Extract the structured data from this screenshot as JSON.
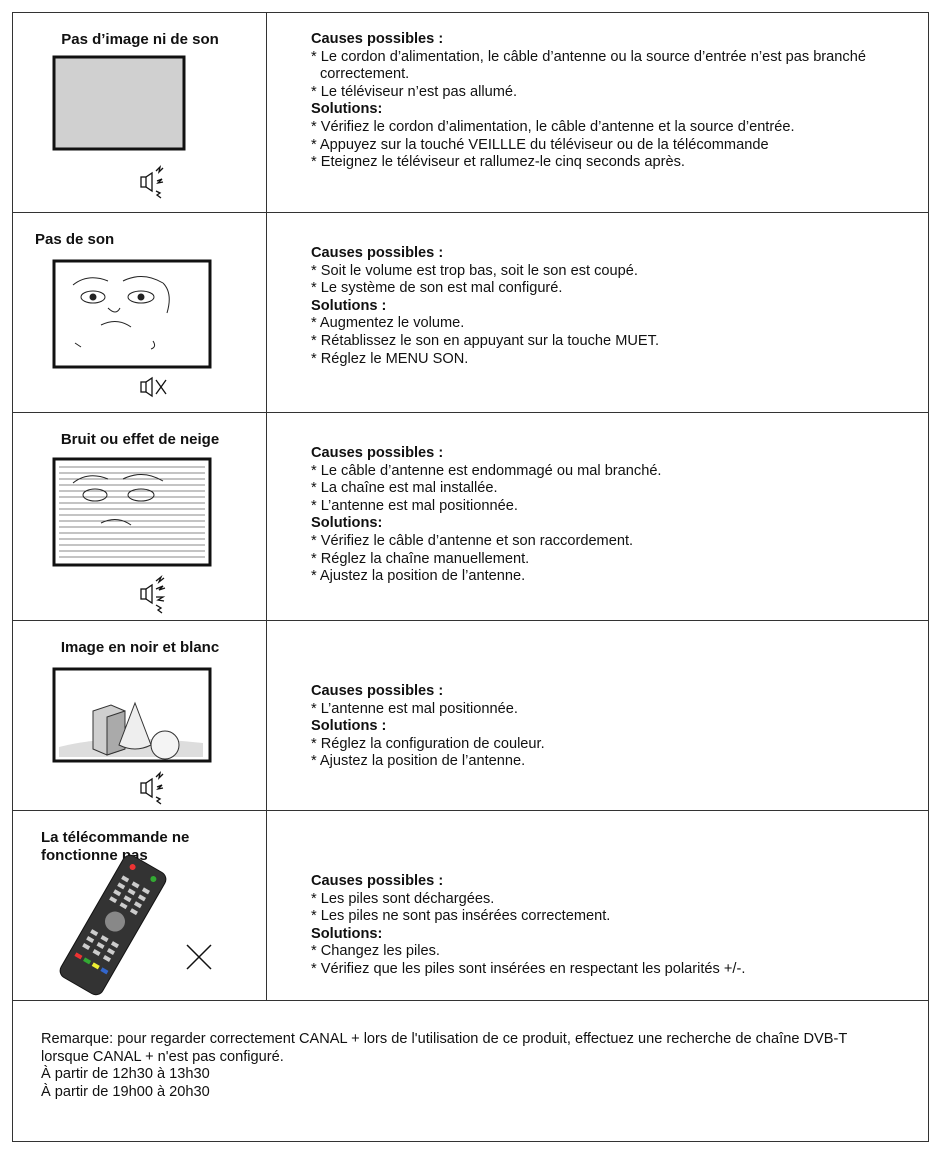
{
  "rows": [
    {
      "title": "Pas d’image ni de son",
      "causes_heading": "Causes possibles :",
      "causes": [
        "* Le cordon d’alimentation, le câble d’antenne ou la source d’entrée n’est pas branché correctement.",
        "* Le téléviseur n’est pas allumé."
      ],
      "solutions_heading": "Solutions:",
      "solutions": [
        "* Vérifiez le cordon d’alimentation, le câble d’antenne et la source d’entrée.",
        "* Appuyez sur la touché VEILLLE du téléviseur ou de la télécommande",
        "* Eteignez le téléviseur et rallumez-le cinq seconds après."
      ]
    },
    {
      "title": "Pas de son",
      "causes_heading": "Causes possibles :",
      "causes": [
        "* Soit le volume est trop bas, soit le son est coupé.",
        "* Le système de son est mal configuré."
      ],
      "solutions_heading": "Solutions :",
      "solutions": [
        "* Augmentez le volume.",
        "* Rétablissez le son en appuyant sur la touche MUET.",
        "* Réglez le MENU SON."
      ]
    },
    {
      "title": "Bruit ou effet de neige",
      "causes_heading": "Causes possibles :",
      "causes": [
        "* Le câble d’antenne est endommagé ou mal branché.",
        "* La chaîne est mal installée.",
        "* L’antenne est mal positionnée."
      ],
      "solutions_heading": "Solutions:",
      "solutions": [
        "* Vérifiez le câble d’antenne et son raccordement.",
        "* Réglez la chaîne manuellement.",
        "* Ajustez la position de l’antenne."
      ]
    },
    {
      "title": "Image en noir et blanc",
      "causes_heading": "Causes possibles :",
      "causes": [
        "* L’antenne est mal positionnée."
      ],
      "solutions_heading": "Solutions :",
      "solutions": [
        "* Réglez la configuration de couleur.",
        "* Ajustez la position de l’antenne."
      ]
    },
    {
      "title": "La télécommande ne fonctionne pas",
      "causes_heading": "Causes possibles :",
      "causes": [
        "* Les piles sont déchargées.",
        "* Les piles ne sont pas insérées correctement."
      ],
      "solutions_heading": "Solutions:",
      "solutions": [
        "* Changez les piles.",
        "* Vérifiez que les piles sont insérées en respectant les polarités +/-."
      ]
    }
  ],
  "footer": {
    "note": "Remarque: pour regarder correctement CANAL + lors de l'utilisation de ce produit, effectuez une recherche de chaîne DVB-T lorsque CANAL + n'est pas configuré.",
    "lines": [
      "À partir de 12h30 à 13h30",
      "À partir de 19h00 à 20h30"
    ]
  }
}
